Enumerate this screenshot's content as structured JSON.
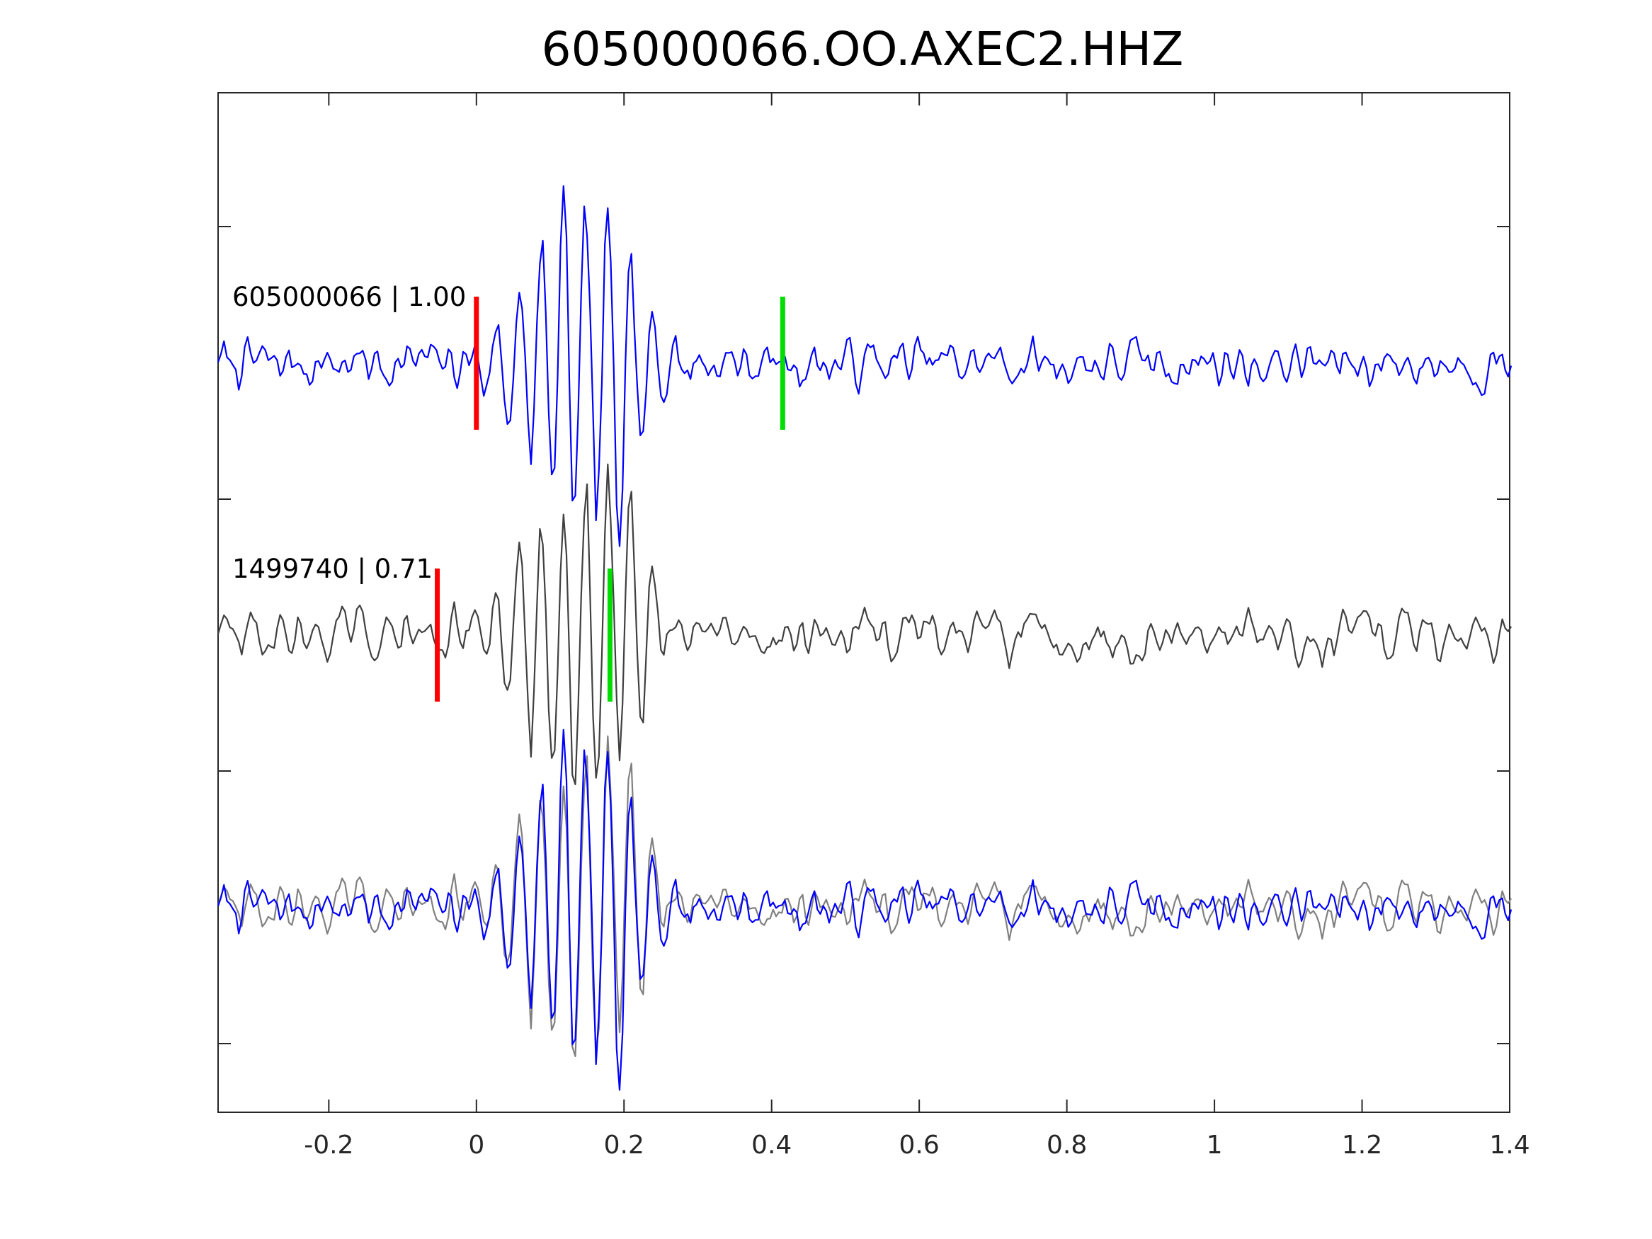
{
  "chart_data": {
    "type": "line",
    "title": "605000066.OO.AXEC2.HHZ",
    "xlabel": "",
    "ylabel": "",
    "xlim": [
      -0.35,
      1.4
    ],
    "x_ticks": [
      "-0.2",
      "0",
      "0.2",
      "0.4",
      "0.6",
      "0.8",
      "1",
      "1.2",
      "1.4"
    ],
    "x_tick_values": [
      -0.2,
      0,
      0.2,
      0.4,
      0.6,
      0.8,
      1,
      1.2,
      1.4
    ],
    "y_axis": "offset traces, no tick labels",
    "grid": false,
    "colors": {
      "template": "#0000ff",
      "detection": "#404040",
      "detection_overlay": "#808080",
      "p_pick": "#ff0000",
      "s_pick": "#00dd00",
      "axes": "#262626"
    },
    "series": [
      {
        "name": "605000066 | 1.00",
        "id": "605000066",
        "cc": "1.00",
        "p_pick_time": 0.0,
        "s_pick_time": 0.415,
        "peak_time": 0.118
      },
      {
        "name": "1499740 | 0.71",
        "id": "1499740",
        "cc": "0.71",
        "p_pick_time": -0.053,
        "s_pick_time": 0.181,
        "peak_time": 0.118
      }
    ],
    "overlay": "template (blue) overlaid on detection (gray), aligned"
  }
}
